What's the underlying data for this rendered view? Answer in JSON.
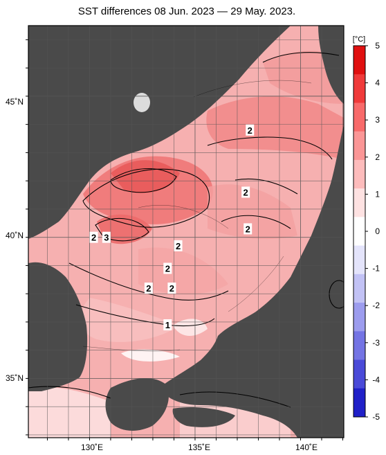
{
  "title": "SST differences 08 Jun. 2023 — 29 May. 2023.",
  "colorbar": {
    "unit_label": "[°C]",
    "ticks": [
      "5",
      "4",
      "3",
      "2",
      "1",
      "0",
      "-1",
      "-2",
      "-3",
      "-4",
      "-5"
    ],
    "colors": [
      "#e01010",
      "#f03a3a",
      "#f86a6a",
      "#fb9696",
      "#fdbcbc",
      "#fee2e2",
      "#ffffff",
      "#e4e4fb",
      "#c2c2f5",
      "#9c9cee",
      "#7474e4",
      "#4a4ad8",
      "#2020c8"
    ]
  },
  "axes": {
    "lat_labels": [
      "45˚N",
      "40˚N",
      "35˚N"
    ],
    "lon_labels": [
      "130˚E",
      "135˚E",
      "140˚E"
    ]
  },
  "contour_labels": [
    {
      "text": "2",
      "lon": 137.6,
      "lat": 43.8
    },
    {
      "text": "2",
      "lon": 137.4,
      "lat": 41.6
    },
    {
      "text": "2",
      "lon": 137.5,
      "lat": 40.3
    },
    {
      "text": "2",
      "lon": 134.2,
      "lat": 39.7
    },
    {
      "text": "2",
      "lon": 130.2,
      "lat": 40.0
    },
    {
      "text": "3",
      "lon": 130.8,
      "lat": 40.0
    },
    {
      "text": "2",
      "lon": 133.7,
      "lat": 38.9
    },
    {
      "text": "2",
      "lon": 132.8,
      "lat": 38.2
    },
    {
      "text": "2",
      "lon": 133.9,
      "lat": 38.2
    },
    {
      "text": "1",
      "lon": 133.7,
      "lat": 36.9
    }
  ],
  "colors": {
    "land": "#4a4a4a",
    "water_base": "#f8b4b4",
    "frame": "#000000"
  }
}
